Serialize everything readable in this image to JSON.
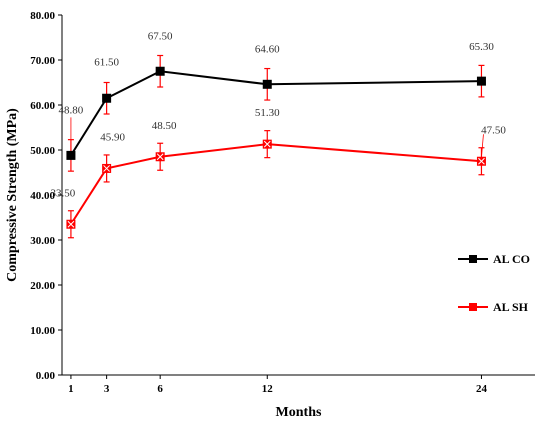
{
  "chart_data": {
    "type": "line",
    "title": "",
    "xlabel": "Months",
    "ylabel": "Compressive Strength (MPa)",
    "x": [
      1,
      3,
      6,
      12,
      24
    ],
    "xlim": [
      0.5,
      27
    ],
    "ylim": [
      0,
      80
    ],
    "y_ticks": [
      "0.00",
      "10.00",
      "20.00",
      "30.00",
      "40.00",
      "50.00",
      "60.00",
      "70.00",
      "80.00"
    ],
    "grid": false,
    "legend_position": "right",
    "series": [
      {
        "name": "AL CO",
        "color": "#000000",
        "marker": "square",
        "values": [
          48.8,
          61.5,
          67.5,
          64.6,
          65.3
        ],
        "labels": [
          "48.80",
          "61.50",
          "67.50",
          "64.60",
          "65.30"
        ],
        "error": [
          3.5,
          3.5,
          3.5,
          3.5,
          3.5
        ]
      },
      {
        "name": "AL SH",
        "color": "#ff0000",
        "marker": "x-square",
        "values": [
          33.5,
          45.9,
          48.5,
          51.3,
          47.5
        ],
        "labels": [
          "33.50",
          "45.90",
          "48.50",
          "51.30",
          "47.50"
        ],
        "error": [
          3.0,
          3.0,
          3.0,
          3.0,
          3.0
        ]
      }
    ]
  }
}
